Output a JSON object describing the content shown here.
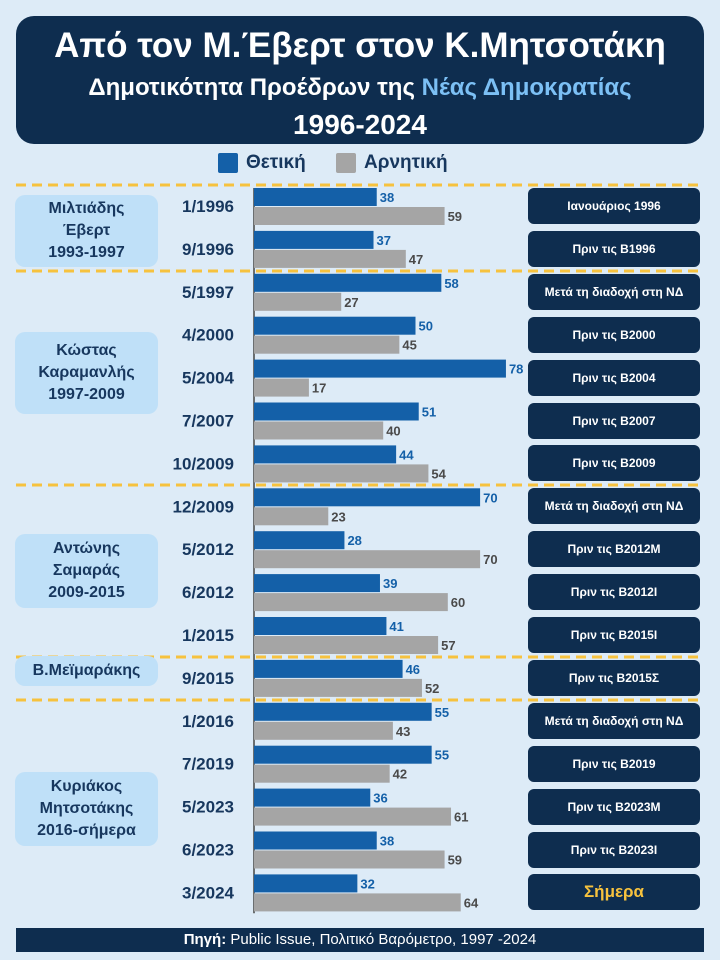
{
  "title": {
    "main": "Από τον Μ.Έβερτ στον Κ.Μητσοτάκη",
    "sub_prefix": "Δημοτικότητα Προέδρων της ",
    "sub_accent": "Νέας Δημοκρατίας",
    "years": "1996-2024"
  },
  "colors": {
    "positive": "#1460a8",
    "negative": "#a5a5a5",
    "label_positive": "#1460a8",
    "label_negative": "#4a4a4a",
    "separator": "#f6c23e",
    "dark": "#0e2d4f"
  },
  "leaders": [
    {
      "name": "Μιλτιάδης Έβερτ",
      "lines": [
        "Μιλτιάδης",
        "Έβερτ",
        "1993-1997"
      ]
    },
    {
      "name": "Κώστας Καραμανλής",
      "lines": [
        "Κώστας",
        "Καραμανλής",
        "1997-2009"
      ]
    },
    {
      "name": "Αντώνης Σαμαράς",
      "lines": [
        "Αντώνης",
        "Σαμαράς",
        "2009-2015"
      ]
    },
    {
      "name": "Β.Μεϊμαράκης",
      "lines": [
        "Β.Μεϊμαράκης"
      ]
    },
    {
      "name": "Κυριάκος Μητσοτάκης",
      "lines": [
        "Κυριάκος",
        "Μητσοτάκης",
        "2016-σήμερα"
      ]
    }
  ],
  "chart_data": {
    "type": "bar",
    "orientation": "horizontal",
    "categories": [
      "1/1996",
      "9/1996",
      "5/1997",
      "4/2000",
      "5/2004",
      "7/2007",
      "10/2009",
      "12/2009",
      "5/2012",
      "6/2012",
      "1/2015",
      "9/2015",
      "1/2016",
      "7/2019",
      "5/2023",
      "6/2023",
      "3/2024"
    ],
    "series": [
      {
        "name": "Θετική",
        "values": [
          38,
          37,
          58,
          50,
          78,
          51,
          44,
          70,
          28,
          39,
          41,
          46,
          55,
          55,
          36,
          38,
          32
        ]
      },
      {
        "name": "Αρνητική",
        "values": [
          59,
          47,
          27,
          45,
          17,
          40,
          54,
          23,
          70,
          60,
          57,
          52,
          43,
          42,
          61,
          59,
          64
        ]
      }
    ],
    "events": [
      "Ιανουάριος 1996",
      "Πριν τις Β1996",
      "Μετά τη διαδοχή στη ΝΔ",
      "Πριν τις Β2000",
      "Πριν τις Β2004",
      "Πριν τις Β2007",
      "Πριν τις Β2009",
      "Μετά τη διαδοχή στη ΝΔ",
      "Πριν τις Β2012Μ",
      "Πριν τις Β2012Ι",
      "Πριν τις Β2015Ι",
      "Πριν τις Β2015Σ",
      "Μετά τη διαδοχή στη ΝΔ",
      "Πριν τις Β2019",
      "Πριν τις Β2023Μ",
      "Πριν τις Β2023Ι",
      "Σήμερα"
    ],
    "xlim": [
      0,
      100
    ],
    "legend_position": "top-center",
    "grid": false
  },
  "source": {
    "label": "Πηγή:",
    "text": " Public Issue, Πολιτικό Βαρόμετρο, 1997 -2024"
  }
}
